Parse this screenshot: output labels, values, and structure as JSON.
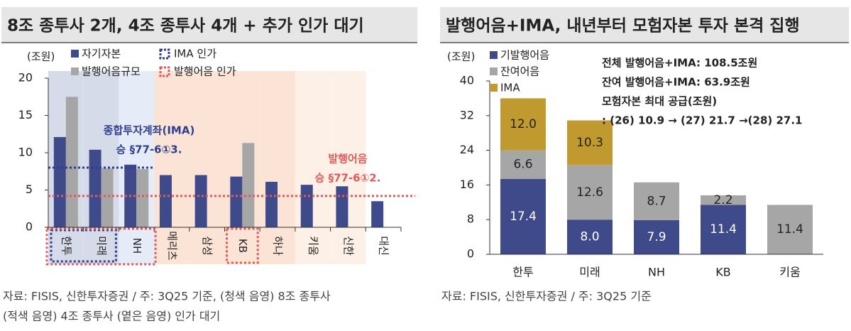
{
  "chart_data": [
    {
      "type": "bar",
      "title": "8조 종투사 2개, 4조 종투사 4개 + 추가 인가 대기",
      "y_label": "(조원)",
      "categories": [
        "한투",
        "미래",
        "NH",
        "메리츠",
        "삼성",
        "KB",
        "하나",
        "키움",
        "신한",
        "대신"
      ],
      "series": [
        {
          "name": "자기자본",
          "color": "#3f4a8a",
          "values": [
            12.1,
            10.4,
            8.4,
            7.0,
            7.0,
            6.8,
            6.1,
            5.7,
            5.5,
            3.5
          ]
        },
        {
          "name": "발행어음규모",
          "color": "#a6a6a6",
          "values": [
            17.5,
            7.9,
            7.8,
            null,
            null,
            11.3,
            null,
            null,
            null,
            null
          ]
        }
      ],
      "reference_lines": [
        {
          "name": "IMA 인가",
          "value": 8,
          "color": "#2f3f8f"
        },
        {
          "name": "발행어음 인가",
          "value": 4.2,
          "color": "#e05a5a"
        }
      ],
      "annotations": [
        "종합투자계좌(IMA)",
        "승 §77-6①3.",
        "발행어음",
        "승 §77-6①2."
      ],
      "ylim": [
        0,
        20
      ],
      "yticks": [
        0,
        5,
        10,
        15,
        20
      ],
      "note": [
        "자료: FISIS, 신한투자증권 / 주: 3Q25 기준, (청색 음영) 8조 종투사",
        "(적색 음영) 4조 종투사 (옅은 음영) 인가 대기"
      ]
    },
    {
      "type": "stacked_bar",
      "title": "발행어음+IMA, 내년부터 모험자본 투자 본격 집행",
      "y_label": "(조원)",
      "categories": [
        "한투",
        "미래",
        "NH",
        "KB",
        "키움"
      ],
      "series": [
        {
          "name": "기발행어음",
          "color": "#3f4a8a",
          "values": [
            17.4,
            8.0,
            7.9,
            11.4,
            null
          ],
          "value_labels": [
            "17.4",
            "8.0",
            "7.9",
            "11.4",
            null
          ]
        },
        {
          "name": "잔여어음",
          "color": "#a6a6a6",
          "values": [
            6.6,
            12.6,
            8.7,
            2.2,
            11.4
          ],
          "value_labels": [
            "6.6",
            "12.6",
            "8.7",
            "2.2",
            "11.4"
          ]
        },
        {
          "name": "IMA",
          "color": "#c09a2f",
          "values": [
            12.0,
            10.3,
            null,
            null,
            null
          ],
          "value_labels": [
            "12.0",
            "10.3",
            null,
            null,
            null
          ]
        }
      ],
      "annotations": [
        "전체 발행어음+IMA: 108.5조원",
        "잔여 발행어음+IMA: 63.9조원",
        "모험자본 최대 공급(조원)",
        ": (26) 10.9 → (27) 21.7 →(28) 27.1"
      ],
      "ylim": [
        0,
        40
      ],
      "yticks": [
        0,
        8,
        16,
        24,
        32,
        40
      ],
      "note": [
        "자료: FISIS, 신한투자증권 / 주: 3Q25 기준"
      ]
    }
  ]
}
